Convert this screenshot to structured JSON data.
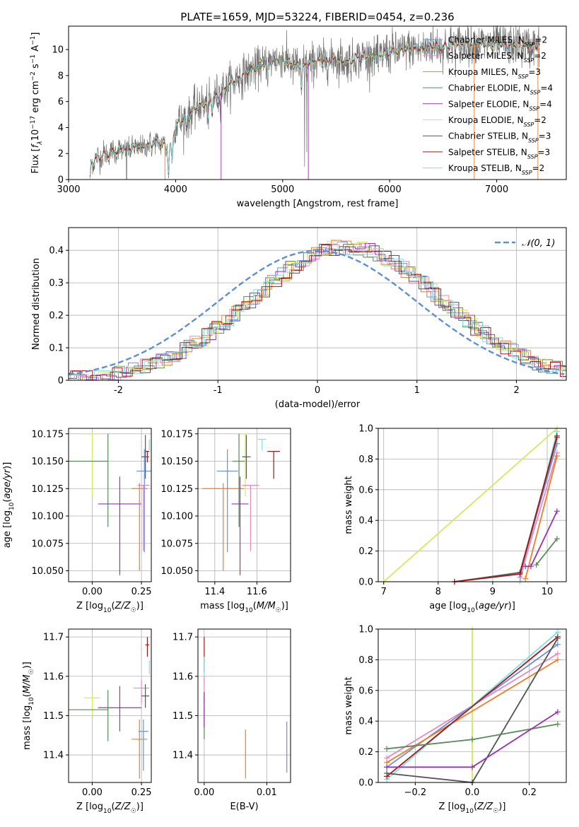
{
  "title": "PLATE=1659, MJD=53224, FIBERID=0454, z=0.236",
  "colors": {
    "Chabrier MILES": "#6b8ee0",
    "Salpeter MILES": "#e88ac0",
    "Kroupa MILES": "#ee7d28",
    "Chabrier ELODIE": "#5a8a5a",
    "Salpeter ELODIE": "#9b30b8",
    "Kroupa ELODIE": "#d6e860",
    "Chabrier STELIB": "#555555",
    "Salpeter STELIB": "#a01818",
    "Kroupa STELIB": "#7ee0e0",
    "Normal": "#5b8fd6"
  },
  "chart_data": [
    {
      "type": "line",
      "name": "spectrum",
      "xlabel": "wavelength [Angstrom, rest frame]",
      "ylabel": "Flux [f_λ 10^-17 erg cm^-2 s^-1 A^-1]",
      "xlim": [
        3000,
        7650
      ],
      "ylim": [
        0,
        11.8
      ],
      "xticks": [
        3000,
        4000,
        5000,
        6000,
        7000
      ],
      "yticks": [
        0,
        2,
        4,
        6,
        8,
        10
      ],
      "grid": false,
      "legend_position": "top-right",
      "legend": [
        {
          "label": "Chabrier MILES, N_SSP=2",
          "color": "#6b8ee0"
        },
        {
          "label": "Salpeter MILES, N_SSP=2",
          "color": "#e88ac0"
        },
        {
          "label": "Kroupa MILES, N_SSP=3",
          "color": "#ee7d28"
        },
        {
          "label": "Chabrier ELODIE, N_SSP=4",
          "color": "#5a8a5a"
        },
        {
          "label": "Salpeter ELODIE, N_SSP=4",
          "color": "#9b30b8"
        },
        {
          "label": "Kroupa ELODIE, N_SSP=2",
          "color": "#d6e860"
        },
        {
          "label": "Chabrier STELIB, N_SSP=3",
          "color": "#555555"
        },
        {
          "label": "Salpeter STELIB, N_SSP=3",
          "color": "#a01818"
        },
        {
          "label": "Kroupa STELIB, N_SSP=2",
          "color": "#7ee0e0"
        }
      ],
      "continuum": {
        "x": [
          3200,
          3210,
          3300,
          3400,
          3500,
          3600,
          3700,
          3800,
          3850,
          3900,
          3930,
          3960,
          4000,
          4100,
          4200,
          4300,
          4400,
          4500,
          4600,
          4700,
          4800,
          4900,
          5000,
          5100,
          5200,
          5300,
          5400,
          5500,
          5600,
          5700,
          5800,
          5900,
          6000,
          6100,
          6200,
          6300,
          6400,
          6500,
          6600,
          6700,
          6800,
          6900,
          7000,
          7100,
          7200,
          7300,
          7400
        ],
        "y": [
          0,
          1.3,
          1.8,
          2.1,
          2.3,
          2.4,
          2.5,
          2.8,
          2.9,
          2.6,
          2.3,
          2.6,
          4.2,
          4.8,
          5.6,
          5.9,
          6.5,
          7.3,
          7.9,
          8.4,
          8.8,
          9.2,
          9.3,
          8.8,
          8.7,
          9.2,
          9.1,
          9.3,
          9.0,
          9.4,
          9.5,
          9.6,
          9.8,
          9.9,
          10.1,
          10.0,
          10.3,
          10.2,
          10.3,
          10.5,
          10.4,
          10.4,
          10.5,
          10.3,
          10.4,
          10.2,
          10.4
        ]
      },
      "absorption_dips": [
        {
          "x": 3933,
          "depth": 1.8
        },
        {
          "x": 3968,
          "depth": 1.5
        },
        {
          "x": 4102,
          "depth": 0.8
        },
        {
          "x": 4304,
          "depth": 1.4
        },
        {
          "x": 4340,
          "depth": 0.9
        },
        {
          "x": 4861,
          "depth": 0.9
        },
        {
          "x": 5175,
          "depth": 1.6
        },
        {
          "x": 5270,
          "depth": 0.8
        },
        {
          "x": 5893,
          "depth": 1.2
        }
      ]
    },
    {
      "type": "histogram",
      "name": "residuals",
      "xlabel": "(data-model)/error",
      "ylabel": "Normed distribution",
      "xlim": [
        -2.5,
        2.5
      ],
      "ylim": [
        0,
        0.47
      ],
      "xticks": [
        -2,
        -1,
        0,
        1,
        2
      ],
      "yticks": [
        0.0,
        0.1,
        0.2,
        0.3,
        0.4
      ],
      "grid": true,
      "bin_width": 0.1,
      "legend_position": "top-right",
      "normal_curve": {
        "label": "𝒩(0, 1)",
        "mean": 0,
        "sigma": 1,
        "color": "#5b8fd6"
      }
    },
    {
      "type": "scatter",
      "name": "age-vs-Z",
      "xlabel": "Z [log10(Z/Z☉)]",
      "ylabel": "age [log10(age/yr)]",
      "xlim": [
        -0.12,
        0.3
      ],
      "ylim": [
        10.04,
        10.18
      ],
      "xticks": [
        0.0,
        0.25
      ],
      "xticklabels": [
        "0.00",
        "0.25"
      ],
      "yticks": [
        10.05,
        10.075,
        10.1,
        10.125,
        10.15,
        10.175
      ],
      "yticklabels": [
        "10.050",
        "10.075",
        "10.100",
        "10.125",
        "10.150",
        "10.175"
      ],
      "grid": true,
      "points": [
        {
          "model": "Kroupa ELODIE",
          "x": 0.0,
          "xerr": 0.04,
          "y": 10.175,
          "yerr": [
            0.057,
            0.0
          ]
        },
        {
          "model": "Chabrier ELODIE",
          "x": 0.08,
          "xerr": [
            0.2,
            0.0
          ],
          "y": 10.15,
          "yerr": [
            0.06,
            0.025
          ]
        },
        {
          "model": "Salpeter ELODIE",
          "x": 0.14,
          "xerr": 0.11,
          "y": 10.111,
          "yerr": [
            0.065,
            0.025
          ]
        },
        {
          "model": "Kroupa MILES",
          "x": 0.24,
          "xerr": 0.04,
          "y": 10.125,
          "yerr": [
            0.075,
            0.005
          ]
        },
        {
          "model": "Salpeter MILES",
          "x": 0.26,
          "xerr": 0.03,
          "y": 10.128,
          "yerr": [
            0.06,
            0.0
          ]
        },
        {
          "model": "Chabrier MILES",
          "x": 0.265,
          "xerr": 0.04,
          "y": 10.141,
          "yerr": [
            0.074,
            0.02
          ]
        },
        {
          "model": "Chabrier STELIB",
          "x": 0.27,
          "xerr": 0.02,
          "y": 10.154,
          "yerr": [
            0.02,
            0.02
          ]
        },
        {
          "model": "Salpeter STELIB",
          "x": 0.28,
          "xerr": 0.01,
          "y": 10.159,
          "yerr": [
            0.01,
            0.0
          ]
        },
        {
          "model": "Kroupa STELIB",
          "x": 0.29,
          "xerr": 0.0,
          "y": 10.17,
          "yerr": [
            0.01,
            0.0
          ]
        }
      ]
    },
    {
      "type": "scatter",
      "name": "age-vs-mass",
      "xlabel": "mass [log10(M/M☉)]",
      "ylabel": "",
      "xlim": [
        11.32,
        11.76
      ],
      "ylim": [
        10.04,
        10.18
      ],
      "xticks": [
        11.4,
        11.6
      ],
      "xticklabels": [
        "11.4",
        "11.6"
      ],
      "yticks": [
        10.05,
        10.075,
        10.1,
        10.125,
        10.15,
        10.175
      ],
      "yticklabels": [
        "10.050",
        "10.075",
        "10.100",
        "10.125",
        "10.150",
        "10.175"
      ],
      "grid": true,
      "points": [
        {
          "model": "Kroupa MILES",
          "x": 11.44,
          "xerr": 0.1,
          "y": 10.125,
          "yerr": [
            0.075,
            0.005
          ]
        },
        {
          "model": "Chabrier MILES",
          "x": 11.46,
          "xerr": 0.05,
          "y": 10.141,
          "yerr": [
            0.074,
            0.02
          ]
        },
        {
          "model": "Chabrier ELODIE",
          "x": 11.515,
          "xerr": 0.03,
          "y": 10.15,
          "yerr": [
            0.06,
            0.025
          ]
        },
        {
          "model": "Salpeter ELODIE",
          "x": 11.52,
          "xerr": 0.04,
          "y": 10.111,
          "yerr": [
            0.065,
            0.025
          ]
        },
        {
          "model": "Kroupa ELODIE",
          "x": 11.545,
          "xerr": 0.02,
          "y": 10.175,
          "yerr": [
            0.057,
            0.0
          ]
        },
        {
          "model": "Chabrier STELIB",
          "x": 11.55,
          "xerr": 0.02,
          "y": 10.154,
          "yerr": [
            0.02,
            0.02
          ]
        },
        {
          "model": "Salpeter MILES",
          "x": 11.57,
          "xerr": 0.04,
          "y": 10.128,
          "yerr": [
            0.06,
            0.0
          ]
        },
        {
          "model": "Kroupa STELIB",
          "x": 11.625,
          "xerr": 0.02,
          "y": 10.17,
          "yerr": [
            0.01,
            0.0
          ]
        },
        {
          "model": "Salpeter STELIB",
          "x": 11.68,
          "xerr": 0.03,
          "y": 10.159,
          "yerr": [
            0.025,
            0.0
          ]
        }
      ]
    },
    {
      "type": "line",
      "name": "mass-weight-vs-age",
      "xlabel": "age [log10(age/yr)]",
      "ylabel": "mass weight",
      "xlim": [
        6.9,
        10.35
      ],
      "ylim": [
        0,
        1.0
      ],
      "xticks": [
        7,
        8,
        9,
        10
      ],
      "yticks": [
        0.0,
        0.2,
        0.4,
        0.6,
        0.8,
        1.0
      ],
      "yticklabels": [
        "0.0",
        "0.2",
        "0.4",
        "0.6",
        "0.8",
        "1.0"
      ],
      "grid": true,
      "series": [
        {
          "model": "Kroupa ELODIE",
          "x": [
            7.0,
            10.18
          ],
          "y": [
            0.0,
            1.0
          ]
        },
        {
          "model": "Kroupa STELIB",
          "x": [
            9.5,
            10.18
          ],
          "y": [
            0.0,
            0.98
          ]
        },
        {
          "model": "Chabrier MILES",
          "x": [
            9.5,
            10.18
          ],
          "y": [
            0.06,
            0.9
          ]
        },
        {
          "model": "Salpeter MILES",
          "x": [
            9.5,
            10.18
          ],
          "y": [
            0.03,
            0.84
          ]
        },
        {
          "model": "Kroupa MILES",
          "x": [
            9.6,
            10.18
          ],
          "y": [
            0.02,
            0.82
          ]
        },
        {
          "model": "Chabrier STELIB",
          "x": [
            8.3,
            9.5,
            10.18
          ],
          "y": [
            0.0,
            0.06,
            0.94
          ]
        },
        {
          "model": "Salpeter STELIB",
          "x": [
            8.3,
            9.5,
            10.18
          ],
          "y": [
            0.0,
            0.05,
            0.95
          ]
        },
        {
          "model": "Salpeter ELODIE",
          "x": [
            9.6,
            9.7,
            10.18
          ],
          "y": [
            0.1,
            0.1,
            0.46
          ]
        },
        {
          "model": "Chabrier ELODIE",
          "x": [
            9.8,
            10.18
          ],
          "y": [
            0.11,
            0.28
          ]
        }
      ]
    },
    {
      "type": "scatter",
      "name": "mass-vs-Z",
      "xlabel": "Z [log10(Z/Z☉)]",
      "ylabel": "mass [log10(M/M☉)]",
      "xlim": [
        -0.12,
        0.3
      ],
      "ylim": [
        11.33,
        11.72
      ],
      "xticks": [
        0.0,
        0.25
      ],
      "xticklabels": [
        "0.00",
        "0.25"
      ],
      "yticks": [
        11.4,
        11.5,
        11.6,
        11.7
      ],
      "yticklabels": [
        "11.4",
        "11.5",
        "11.6",
        "11.7"
      ],
      "grid": true,
      "points": [
        {
          "model": "Kroupa ELODIE",
          "x": 0.0,
          "xerr": 0.04,
          "y": 11.545,
          "yerr": [
            0.045,
            0.01
          ]
        },
        {
          "model": "Chabrier ELODIE",
          "x": 0.08,
          "xerr": [
            0.2,
            0.0
          ],
          "y": 11.515,
          "yerr": [
            0.08,
            0.05
          ]
        },
        {
          "model": "Salpeter ELODIE",
          "x": 0.14,
          "xerr": 0.11,
          "y": 11.52,
          "yerr": [
            0.06,
            0.055
          ]
        },
        {
          "model": "Kroupa MILES",
          "x": 0.24,
          "xerr": 0.04,
          "y": 11.44,
          "yerr": [
            0.1,
            0.05
          ]
        },
        {
          "model": "Salpeter MILES",
          "x": 0.25,
          "xerr": 0.04,
          "y": 11.57,
          "yerr": [
            0.04,
            0.02
          ]
        },
        {
          "model": "Chabrier MILES",
          "x": 0.26,
          "xerr": 0.025,
          "y": 11.46,
          "yerr": [
            0.1,
            0.03
          ]
        },
        {
          "model": "Chabrier STELIB",
          "x": 0.27,
          "xerr": 0.02,
          "y": 11.55,
          "yerr": [
            0.03,
            0.03
          ]
        },
        {
          "model": "Salpeter STELIB",
          "x": 0.28,
          "xerr": 0.01,
          "y": 11.68,
          "yerr": [
            0.03,
            0.02
          ]
        },
        {
          "model": "Kroupa STELIB",
          "x": 0.29,
          "xerr": 0.0,
          "y": 11.625,
          "yerr": [
            0.02,
            0.015
          ]
        }
      ]
    },
    {
      "type": "scatter",
      "name": "mass-vs-EBV",
      "xlabel": "E(B-V)",
      "ylabel": "",
      "xlim": [
        -0.001,
        0.0138
      ],
      "ylim": [
        11.33,
        11.72
      ],
      "xticks": [
        0.0,
        0.01
      ],
      "xticklabels": [
        "0.00",
        "0.01"
      ],
      "yticks": [
        11.4,
        11.5,
        11.6,
        11.7
      ],
      "yticklabels": [
        "11.4",
        "11.5",
        "11.6",
        "11.7"
      ],
      "grid": true,
      "points": [
        {
          "model": "Salpeter STELIB",
          "x": 0.0,
          "y": 11.64,
          "yerr": [
            0.03,
            0.06
          ]
        },
        {
          "model": "Kroupa STELIB",
          "x": 0.0,
          "y": 11.61,
          "yerr": [
            0.03,
            0.04
          ]
        },
        {
          "model": "Salpeter MILES",
          "x": 0.0,
          "y": 11.57,
          "yerr": [
            0.05,
            0.03
          ]
        },
        {
          "model": "Chabrier STELIB",
          "x": 0.0,
          "y": 11.53,
          "yerr": [
            0.04,
            0.03
          ]
        },
        {
          "model": "Kroupa ELODIE",
          "x": 0.0,
          "y": 11.5,
          "yerr": [
            0.03,
            0.03
          ]
        },
        {
          "model": "Chabrier ELODIE",
          "x": 0.0,
          "y": 11.48,
          "yerr": [
            0.04,
            0.04
          ]
        },
        {
          "model": "Salpeter ELODIE",
          "x": 0.0,
          "y": 11.51,
          "yerr": [
            0.04,
            0.04
          ]
        },
        {
          "model": "Kroupa MILES",
          "x": 0.0066,
          "y": 11.405,
          "yerr": [
            0.065,
            0.06
          ]
        },
        {
          "model": "Chabrier MILES",
          "x": 0.0132,
          "y": 11.42,
          "yerr": [
            0.065,
            0.065
          ]
        }
      ]
    },
    {
      "type": "line",
      "name": "mass-weight-vs-Z",
      "xlabel": "Z [log10(Z/Z☉)]",
      "ylabel": "mass weight",
      "xlim": [
        -0.33,
        0.33
      ],
      "ylim": [
        0,
        1.0
      ],
      "xticks": [
        -0.2,
        0.0,
        0.2
      ],
      "xticklabels": [
        "−0.2",
        "0.0",
        "0.2"
      ],
      "yticks": [
        0.0,
        0.2,
        0.4,
        0.6,
        0.8,
        1.0
      ],
      "yticklabels": [
        "0.0",
        "0.2",
        "0.4",
        "0.6",
        "0.8",
        "1.0"
      ],
      "grid": true,
      "series": [
        {
          "model": "Kroupa ELODIE",
          "x": [
            0.0,
            0.0
          ],
          "y": [
            0.0,
            1.0
          ]
        },
        {
          "model": "Salpeter MILES",
          "x": [
            -0.3,
            0.3
          ],
          "y": [
            0.16,
            0.84
          ]
        },
        {
          "model": "Chabrier MILES",
          "x": [
            -0.3,
            0.3
          ],
          "y": [
            0.1,
            0.9
          ]
        },
        {
          "model": "Kroupa MILES",
          "x": [
            -0.3,
            0.3
          ],
          "y": [
            0.13,
            0.8
          ]
        },
        {
          "model": "Kroupa STELIB",
          "x": [
            -0.3,
            0.3
          ],
          "y": [
            0.02,
            0.98
          ]
        },
        {
          "model": "Salpeter STELIB",
          "x": [
            -0.3,
            0.3
          ],
          "y": [
            0.04,
            0.95
          ]
        },
        {
          "model": "Chabrier STELIB",
          "x": [
            -0.3,
            0.0,
            0.3
          ],
          "y": [
            0.06,
            0.0,
            0.94
          ]
        },
        {
          "model": "Chabrier ELODIE",
          "x": [
            -0.3,
            0.0,
            0.3
          ],
          "y": [
            0.22,
            0.28,
            0.38
          ]
        },
        {
          "model": "Salpeter ELODIE",
          "x": [
            -0.3,
            0.0,
            0.3
          ],
          "y": [
            0.1,
            0.1,
            0.46
          ]
        }
      ]
    }
  ]
}
